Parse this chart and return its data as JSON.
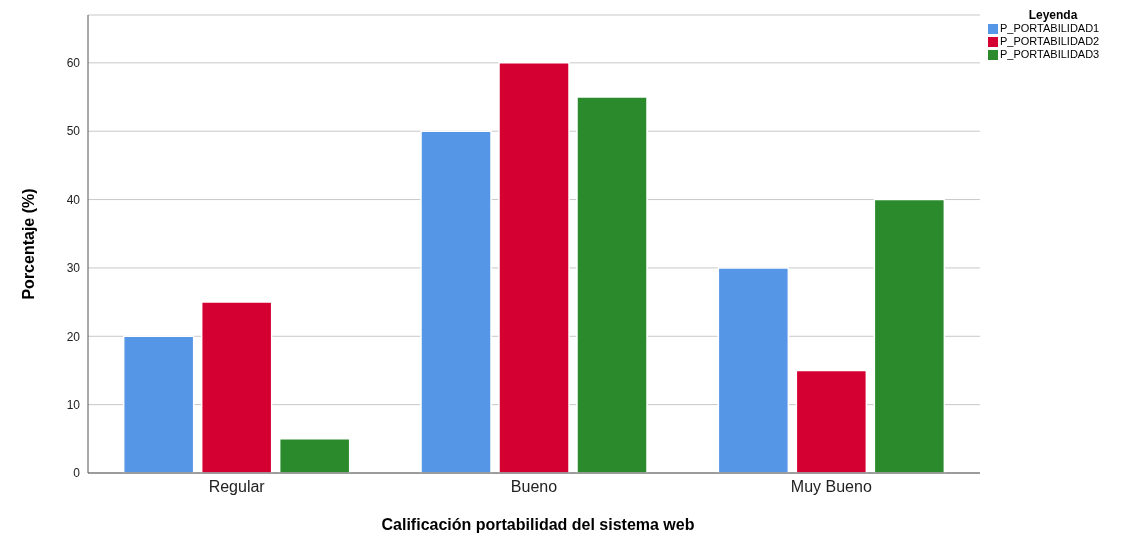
{
  "chart_data": {
    "type": "bar",
    "xlabel": "Calificación portabilidad del sistema web",
    "ylabel": "Porcentaje (%)",
    "legend_title": "Leyenda",
    "categories": [
      "Regular",
      "Bueno",
      "Muy Bueno"
    ],
    "series": [
      {
        "name": "P_PORTABILIDAD1",
        "color": "#5596e6",
        "values": [
          20,
          50,
          30
        ]
      },
      {
        "name": "P_PORTABILIDAD2",
        "color": "#d50032",
        "values": [
          25,
          60,
          15
        ]
      },
      {
        "name": "P_PORTABILIDAD3",
        "color": "#2b8a2b",
        "values": [
          5,
          55,
          40
        ]
      }
    ],
    "ylim": [
      0,
      67
    ],
    "yticks": [
      0,
      10,
      20,
      30,
      40,
      50,
      60
    ],
    "grid": "y",
    "legend": "top right"
  }
}
